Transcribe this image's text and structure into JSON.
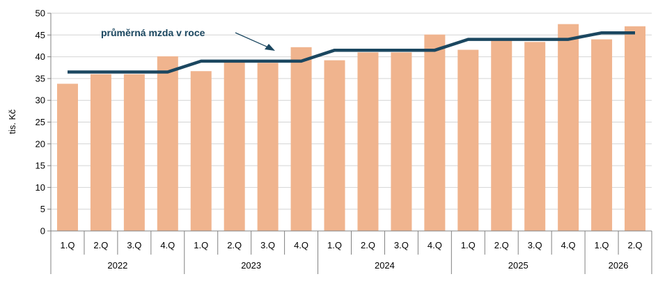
{
  "chart_data": {
    "type": "bar",
    "ylabel": "tis. Kč",
    "ylim": [
      0,
      50
    ],
    "yticks": [
      0,
      5,
      10,
      15,
      20,
      25,
      30,
      35,
      40,
      45,
      50
    ],
    "categories": [
      "1.Q",
      "2.Q",
      "3.Q",
      "4.Q",
      "1.Q",
      "2.Q",
      "3.Q",
      "4.Q",
      "1.Q",
      "2.Q",
      "3.Q",
      "4.Q",
      "1.Q",
      "2.Q",
      "3.Q",
      "4.Q",
      "1.Q",
      "2.Q"
    ],
    "years": [
      {
        "label": "2022",
        "count": 4
      },
      {
        "label": "2023",
        "count": 4
      },
      {
        "label": "2024",
        "count": 4
      },
      {
        "label": "2025",
        "count": 4
      },
      {
        "label": "2026",
        "count": 2
      }
    ],
    "series": [
      {
        "type": "bar",
        "values": [
          33.8,
          36.0,
          36.0,
          40.1,
          36.7,
          38.9,
          38.6,
          42.2,
          39.2,
          41.0,
          41.0,
          45.1,
          41.6,
          43.9,
          43.4,
          47.5,
          44.0,
          47.0
        ],
        "color": "#f0b48e"
      },
      {
        "type": "line",
        "name": "průměrná mzda v roce",
        "values": [
          36.5,
          36.5,
          36.5,
          36.5,
          39.0,
          39.0,
          39.0,
          39.0,
          41.5,
          41.5,
          41.5,
          41.5,
          44.0,
          44.0,
          44.0,
          44.0,
          45.5,
          45.5
        ],
        "color": "#1b4760"
      }
    ],
    "annotation": {
      "text": "průměrná mzda v roce",
      "color": "#1b4760"
    },
    "grid": true,
    "gridColor": "#d4d4d4"
  }
}
